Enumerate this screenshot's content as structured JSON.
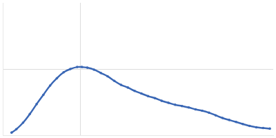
{
  "chart_data": {
    "type": "scatter",
    "x": [
      0.114,
      0.175,
      0.263,
      0.35,
      0.438,
      0.525,
      0.613,
      0.7,
      0.788,
      0.875,
      0.963,
      1.024,
      1.094,
      1.181,
      1.269,
      1.356,
      1.444,
      1.531,
      1.619,
      1.706,
      1.794,
      1.881,
      1.969,
      2.056,
      2.144,
      2.231,
      2.319,
      2.406,
      2.494,
      2.581,
      2.669,
      2.756,
      2.844,
      2.931,
      3.019,
      3.106,
      3.194,
      3.281,
      3.369,
      3.456
    ],
    "values": [
      0.04,
      0.09,
      0.19,
      0.32,
      0.47,
      0.61,
      0.75,
      0.86,
      0.95,
      1.0,
      1.03,
      1.03,
      1.02,
      0.99,
      0.94,
      0.89,
      0.82,
      0.76,
      0.72,
      0.67,
      0.63,
      0.59,
      0.56,
      0.52,
      0.49,
      0.46,
      0.44,
      0.42,
      0.39,
      0.37,
      0.34,
      0.3,
      0.26,
      0.23,
      0.2,
      0.17,
      0.14,
      0.12,
      0.11,
      0.1
    ],
    "color": "#3a67b5",
    "marker": "circle",
    "line_style": "solid",
    "xlim": [
      0,
      3.5
    ],
    "xticks": [
      1
    ],
    "ylim": [
      0,
      2
    ],
    "yticks": [
      1
    ],
    "grid": true,
    "tick_labels": false
  }
}
